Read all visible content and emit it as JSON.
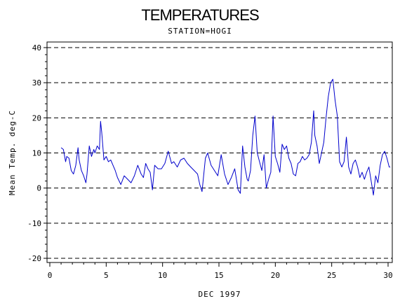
{
  "chart_data": {
    "type": "line",
    "title": "TEMPERATURES",
    "subtitle": "STATION=HOGI",
    "xlabel": "DEC 1997",
    "ylabel": "Mean Temp. deg-C",
    "xlim": [
      0,
      30
    ],
    "ylim": [
      -20,
      40
    ],
    "x_ticks": [
      0,
      5,
      10,
      15,
      20,
      25,
      30
    ],
    "x_tick_labels": [
      "0",
      "5",
      "10",
      "15",
      "20",
      "25",
      "30"
    ],
    "y_ticks": [
      -20,
      -10,
      0,
      10,
      20,
      30,
      40
    ],
    "y_tick_labels": [
      "-20",
      "-10",
      "0",
      "10",
      "20",
      "30",
      "40"
    ],
    "grid": "horizontal dashed at major y ticks",
    "colors": {
      "line": "#0000cc",
      "axes": "#000000",
      "grid": "#000000"
    },
    "series": [
      {
        "x": [
          1.0,
          1.2,
          1.4,
          1.5,
          1.7,
          1.9,
          2.1,
          2.3,
          2.5,
          2.6,
          2.8,
          3.0,
          3.2,
          3.3,
          3.5,
          3.7,
          3.9,
          4.0,
          4.2,
          4.4,
          4.5,
          4.6,
          4.8,
          5.0,
          5.2,
          5.4,
          5.6,
          5.8,
          6.0,
          6.3,
          6.6,
          6.9,
          7.2,
          7.5,
          7.8,
          8.1,
          8.3,
          8.5,
          8.7,
          8.9,
          9.1,
          9.3,
          9.6,
          9.9,
          10.2,
          10.5,
          10.8,
          11.0,
          11.3,
          11.6,
          11.9,
          12.2,
          12.5,
          12.8,
          13.1,
          13.3,
          13.5,
          13.8,
          14.0,
          14.3,
          14.6,
          14.9,
          15.2,
          15.5,
          15.8,
          16.1,
          16.4,
          16.7,
          16.9,
          17.1,
          17.3,
          17.5,
          17.6,
          17.8,
          18.0,
          18.2,
          18.4,
          18.6,
          18.8,
          19.0,
          19.2,
          19.4,
          19.6,
          19.8,
          20.0,
          20.2,
          20.4,
          20.6,
          20.8,
          21.0,
          21.2,
          21.4,
          21.6,
          21.8,
          22.0,
          22.2,
          22.4,
          22.6,
          22.8,
          23.0,
          23.2,
          23.4,
          23.5,
          23.7,
          23.9,
          24.1,
          24.3,
          24.5,
          24.7,
          24.9,
          25.1,
          25.3,
          25.5,
          25.7,
          25.9,
          26.1,
          26.3,
          26.5,
          26.7,
          26.9,
          27.1,
          27.3,
          27.5,
          27.7,
          27.9,
          28.1,
          28.3,
          28.5,
          28.7,
          28.9,
          29.1,
          29.3,
          29.5,
          29.7,
          29.9,
          30.1,
          30.2
        ],
        "values": [
          11.5,
          11.0,
          7.5,
          9.0,
          8.5,
          5.0,
          4.0,
          6.5,
          11.5,
          8.0,
          5.0,
          3.5,
          1.5,
          4.0,
          12.0,
          9.0,
          11.0,
          10.0,
          12.0,
          11.0,
          19.0,
          16.0,
          8.0,
          9.0,
          7.5,
          8.0,
          6.5,
          5.0,
          3.0,
          1.0,
          3.5,
          2.5,
          1.5,
          3.5,
          6.5,
          4.0,
          3.0,
          7.0,
          5.5,
          4.5,
          -0.5,
          6.5,
          5.5,
          5.5,
          7.0,
          10.5,
          7.0,
          7.5,
          6.0,
          8.0,
          8.5,
          7.0,
          6.0,
          5.0,
          4.0,
          1.0,
          -1.0,
          8.5,
          10.0,
          6.5,
          5.0,
          3.5,
          9.5,
          4.0,
          1.0,
          3.0,
          5.5,
          -0.5,
          -1.5,
          12.0,
          6.0,
          2.5,
          2.0,
          5.0,
          15.0,
          20.5,
          10.0,
          7.5,
          5.0,
          9.5,
          0.0,
          2.5,
          4.5,
          20.5,
          9.0,
          7.0,
          4.5,
          12.5,
          11.0,
          12.0,
          8.5,
          7.0,
          4.0,
          3.5,
          7.0,
          7.5,
          9.0,
          8.0,
          8.5,
          9.5,
          13.0,
          22.0,
          15.0,
          12.0,
          7.0,
          10.0,
          13.0,
          20.0,
          26.0,
          30.0,
          31.0,
          25.0,
          20.5,
          7.5,
          6.0,
          7.5,
          14.5,
          6.0,
          4.0,
          7.0,
          8.0,
          6.0,
          3.0,
          4.5,
          2.5,
          4.5,
          6.0,
          2.0,
          -2.0,
          3.5,
          1.5,
          6.5,
          9.5,
          10.5,
          8.5,
          6.0,
          6.0
        ]
      }
    ]
  }
}
